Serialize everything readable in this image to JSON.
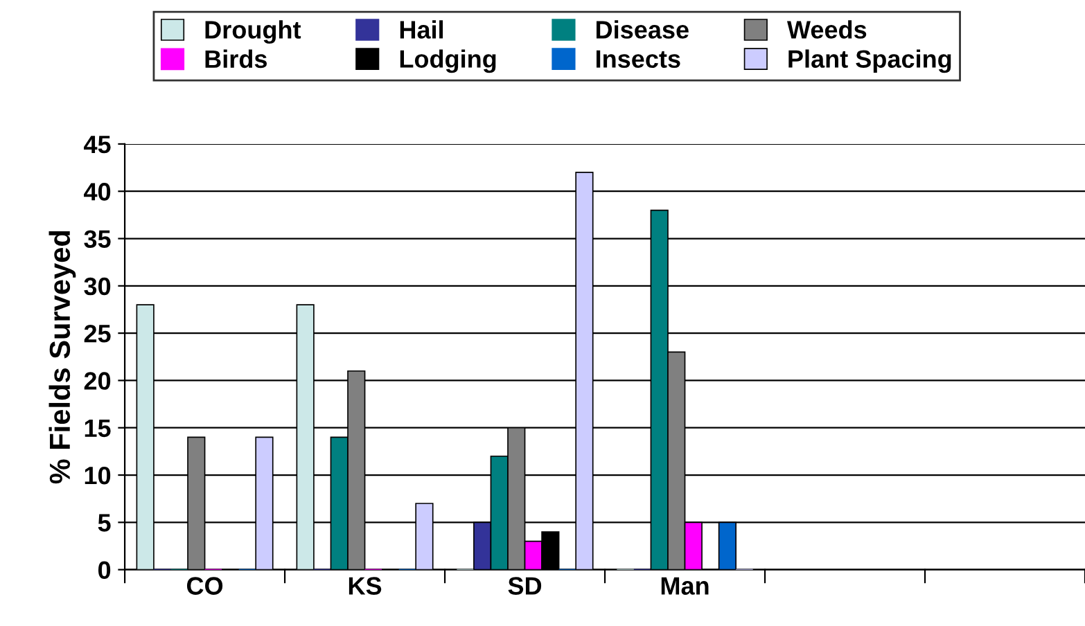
{
  "chart_data": {
    "type": "bar",
    "ylabel": "% Fields Surveyed",
    "categories": [
      "CO",
      "KS",
      "SD",
      "Man",
      null,
      null
    ],
    "series": [
      {
        "name": "Drought",
        "color": "#cce8e8",
        "values": [
          28,
          28,
          0,
          0,
          null,
          null
        ]
      },
      {
        "name": "Hail",
        "color": "#333399",
        "values": [
          0,
          0,
          5,
          0,
          null,
          null
        ]
      },
      {
        "name": "Disease",
        "color": "#008080",
        "values": [
          0,
          14,
          12,
          38,
          null,
          null
        ]
      },
      {
        "name": "Weeds",
        "color": "#808080",
        "values": [
          14,
          21,
          15,
          23,
          null,
          null
        ]
      },
      {
        "name": "Birds",
        "color": "#ff00ff",
        "values": [
          0,
          0,
          3,
          5,
          null,
          null
        ]
      },
      {
        "name": "Lodging",
        "color": "#000000",
        "values": [
          0,
          0,
          4,
          0,
          null,
          null
        ]
      },
      {
        "name": "Insects",
        "color": "#0066cc",
        "values": [
          0,
          0,
          0,
          5,
          null,
          null
        ]
      },
      {
        "name": "Plant Spacing",
        "color": "#ccccff",
        "values": [
          14,
          7,
          42,
          0,
          null,
          null
        ]
      }
    ],
    "ylim": [
      0,
      45
    ],
    "yticks": [
      0,
      5,
      10,
      15,
      20,
      25,
      30,
      35,
      40,
      45
    ],
    "grid": "y",
    "legend": "top"
  }
}
